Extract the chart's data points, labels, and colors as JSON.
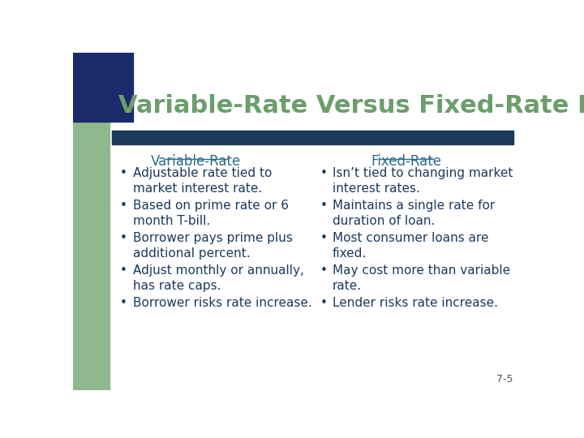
{
  "title": "Variable-Rate Versus Fixed-Rate Loans",
  "title_color": "#6B9E6B",
  "title_fontsize": 22,
  "bg_color": "#FFFFFF",
  "left_sidebar_color": "#8FB88F",
  "top_left_square_color": "#1B2A6B",
  "header_bar_color": "#1B3A5C",
  "slide_number": "7-5",
  "left_col_header": "Variable-Rate",
  "right_col_header": "Fixed-Rate",
  "header_color": "#2E6B8A",
  "bullet_color": "#1B3A5C",
  "left_bullets": [
    "Adjustable rate tied to\nmarket interest rate.",
    "Based on prime rate or 6\nmonth T-bill.",
    "Borrower pays prime plus\nadditional percent.",
    "Adjust monthly or annually,\nhas rate caps.",
    "Borrower risks rate increase."
  ],
  "right_bullets": [
    "Isn’t tied to changing market\ninterest rates.",
    "Maintains a single rate for\nduration of loan.",
    "Most consumer loans are\nfixed.",
    "May cost more than variable\nrate.",
    "Lender risks rate increase."
  ]
}
